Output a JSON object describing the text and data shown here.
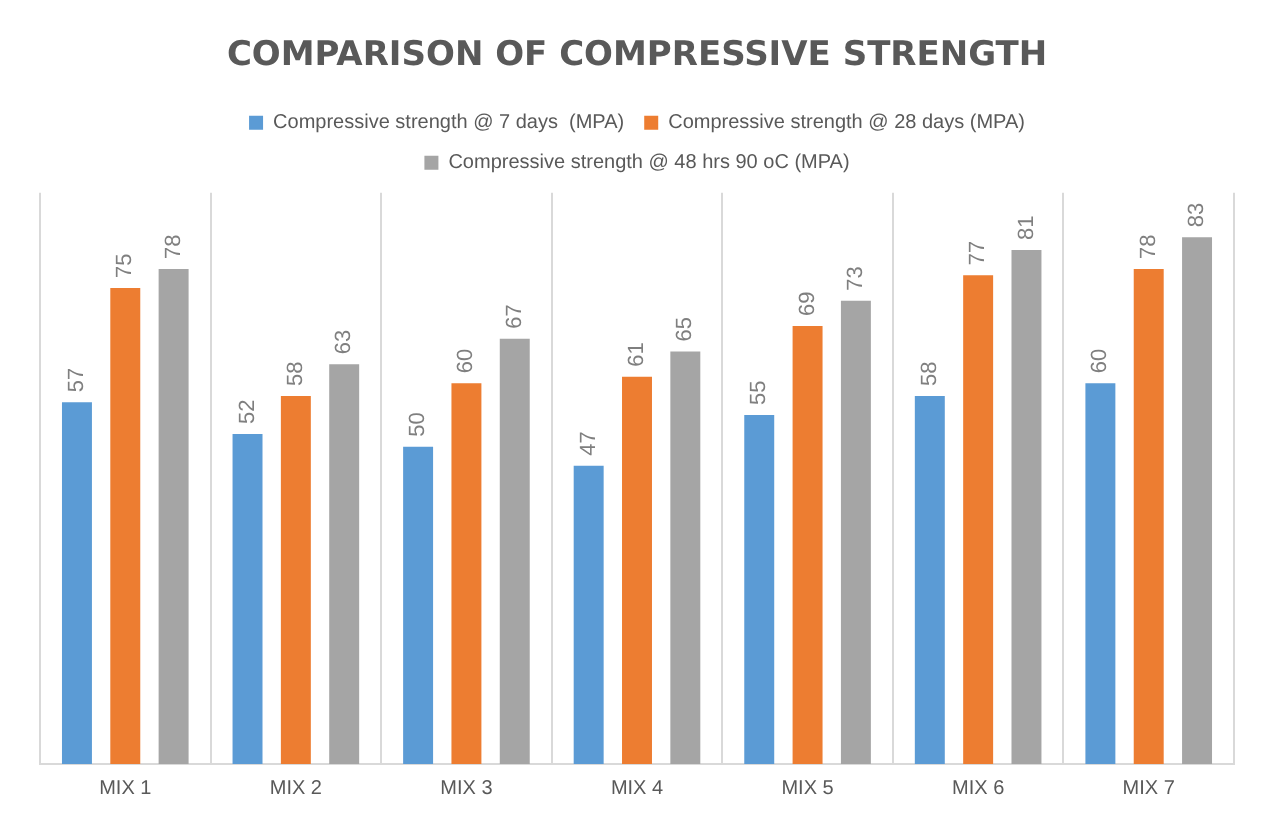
{
  "chart_data": {
    "type": "bar",
    "title": "COMPARISON OF COMPRESSIVE STRENGTH",
    "categories": [
      "MIX 1",
      "MIX 2",
      "MIX 3",
      "MIX 4",
      "MIX 5",
      "MIX 6",
      "MIX 7"
    ],
    "series": [
      {
        "name": "Compressive strength @ 7 days  (MPA)",
        "color": "#5b9bd5",
        "values": [
          57,
          52,
          50,
          47,
          55,
          58,
          60
        ]
      },
      {
        "name": "Compressive strength @ 28 days (MPA)",
        "color": "#ed7d31",
        "values": [
          75,
          58,
          60,
          61,
          69,
          77,
          78
        ]
      },
      {
        "name": "Compressive strength @ 48 hrs 90 oC (MPA)",
        "color": "#a5a5a5",
        "values": [
          78,
          63,
          67,
          65,
          73,
          81,
          83
        ]
      }
    ],
    "data_labels": true,
    "grid": "x",
    "legend": "top",
    "tick_labels": "x"
  }
}
